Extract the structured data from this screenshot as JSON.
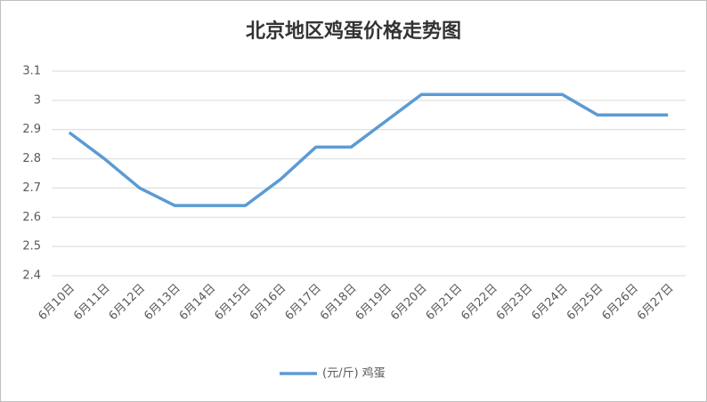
{
  "chart_data": {
    "type": "line",
    "title": "北京地区鸡蛋价格走势图",
    "categories": [
      "6月10日",
      "6月11日",
      "6月12日",
      "6月13日",
      "6月14日",
      "6月15日",
      "6月16日",
      "6月17日",
      "6月18日",
      "6月19日",
      "6月20日",
      "6月21日",
      "6月22日",
      "6月23日",
      "6月24日",
      "6月25日",
      "6月26日",
      "6月27日"
    ],
    "series": [
      {
        "name": "(元/斤) 鸡蛋",
        "color": "#5b9bd5",
        "values": [
          2.89,
          2.8,
          2.7,
          2.64,
          2.64,
          2.64,
          2.73,
          2.84,
          2.84,
          2.93,
          3.02,
          3.02,
          3.02,
          3.02,
          3.02,
          2.95,
          2.95,
          2.95
        ]
      }
    ],
    "ylim": [
      2.4,
      3.1
    ],
    "yticks": [
      2.4,
      2.5,
      2.6,
      2.7,
      2.8,
      2.9,
      3,
      3.1
    ],
    "grid": true
  }
}
